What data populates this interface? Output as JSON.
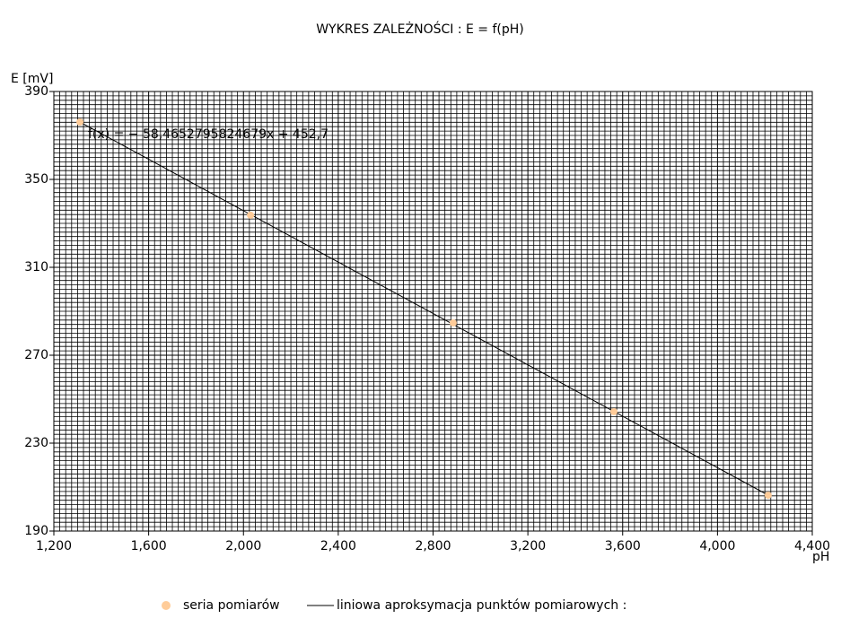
{
  "chart_data": {
    "type": "scatter",
    "title": "WYKRES ZALEŻNOŚCI :  E = f(pH)",
    "y_label": "E [mV]",
    "x_label": "pH",
    "x": [
      1.31,
      2.03,
      2.885,
      3.563,
      4.214
    ],
    "series": [
      {
        "name": "seria pomiarów",
        "color": "#ffcc99",
        "values": [
          376.1,
          333.7,
          284.7,
          244.3,
          206.3
        ]
      }
    ],
    "trendline": {
      "name": "liniowa aproksymacja punktów pomiarowych :",
      "color": "#000000",
      "equation": "f(x) = − 58,4652795824679x + 452,7",
      "slope": -58.4652795824679,
      "intercept": 452.7
    },
    "xlim": [
      1.2,
      4.4
    ],
    "xticks": [
      {
        "value": 1.2,
        "label": "1,200"
      },
      {
        "value": 1.6,
        "label": "1,600"
      },
      {
        "value": 2.0,
        "label": "2,000"
      },
      {
        "value": 2.4,
        "label": "2,400"
      },
      {
        "value": 2.8,
        "label": "2,800"
      },
      {
        "value": 3.2,
        "label": "3,200"
      },
      {
        "value": 3.6,
        "label": "3,600"
      },
      {
        "value": 4.0,
        "label": "4,000"
      },
      {
        "value": 4.4,
        "label": "4,400"
      }
    ],
    "ylim": [
      190,
      390
    ],
    "yticks": [
      190,
      230,
      270,
      310,
      350,
      390
    ],
    "grid": true
  }
}
